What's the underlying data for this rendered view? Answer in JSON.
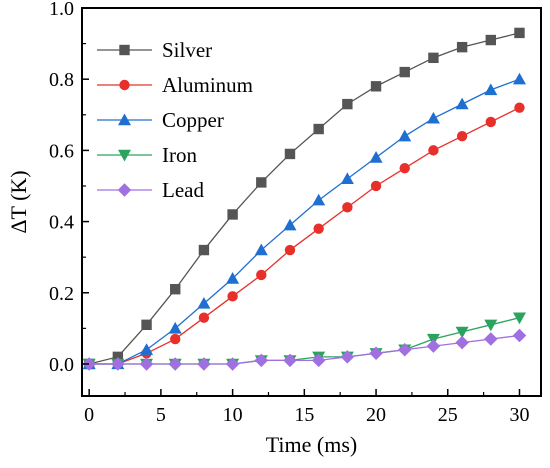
{
  "chart_data": {
    "type": "line",
    "title": "",
    "xlabel": "Time (ms)",
    "ylabel": "ΔT (K)",
    "xlim": [
      -0.5,
      31.5
    ],
    "ylim": [
      -0.09,
      1.0
    ],
    "xticks": [
      0,
      5,
      10,
      15,
      20,
      25,
      30
    ],
    "xtick_labels": [
      "0",
      "5",
      "10",
      "15",
      "20",
      "25",
      "30"
    ],
    "yticks": [
      0.0,
      0.2,
      0.4,
      0.6,
      0.8,
      1.0
    ],
    "ytick_labels": [
      "0.0",
      "0.2",
      "0.4",
      "0.6",
      "0.8",
      "1.0"
    ],
    "grid": false,
    "legend_position": "top-left",
    "x": [
      0,
      2,
      4,
      6,
      8,
      10,
      12,
      14,
      16,
      18,
      20,
      22,
      24,
      26,
      28,
      30
    ],
    "series": [
      {
        "name": "Silver",
        "marker": "square",
        "color": "#555555",
        "values": [
          0.0,
          0.02,
          0.11,
          0.21,
          0.32,
          0.42,
          0.51,
          0.59,
          0.66,
          0.73,
          0.78,
          0.82,
          0.86,
          0.89,
          0.91,
          0.93
        ]
      },
      {
        "name": "Aluminum",
        "marker": "circle",
        "color": "#e8302a",
        "values": [
          0.0,
          0.0,
          0.03,
          0.07,
          0.13,
          0.19,
          0.25,
          0.32,
          0.38,
          0.44,
          0.5,
          0.55,
          0.6,
          0.64,
          0.68,
          0.72
        ]
      },
      {
        "name": "Copper",
        "marker": "triangle-up",
        "color": "#1f6fd1",
        "values": [
          0.0,
          0.0,
          0.04,
          0.1,
          0.17,
          0.24,
          0.32,
          0.39,
          0.46,
          0.52,
          0.58,
          0.64,
          0.69,
          0.73,
          0.77,
          0.8
        ]
      },
      {
        "name": "Iron",
        "marker": "triangle-down",
        "color": "#2ca25f",
        "values": [
          0.0,
          0.0,
          0.0,
          0.0,
          0.0,
          0.0,
          0.01,
          0.01,
          0.02,
          0.02,
          0.03,
          0.04,
          0.07,
          0.09,
          0.11,
          0.13
        ]
      },
      {
        "name": "Lead",
        "marker": "diamond",
        "color": "#a070e0",
        "values": [
          0.0,
          0.0,
          0.0,
          0.0,
          0.0,
          0.0,
          0.01,
          0.01,
          0.01,
          0.02,
          0.03,
          0.04,
          0.05,
          0.06,
          0.07,
          0.08
        ]
      }
    ]
  }
}
